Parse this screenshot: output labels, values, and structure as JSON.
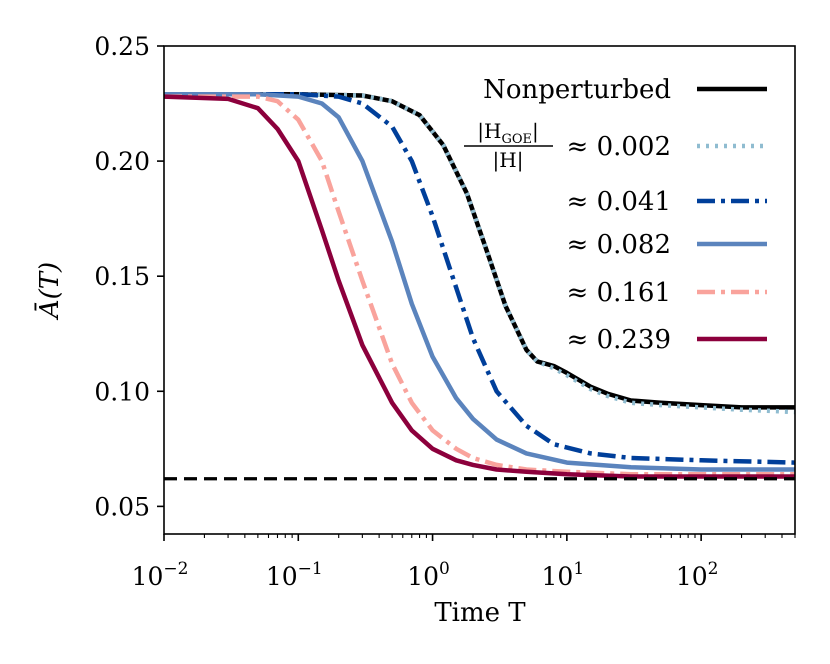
{
  "chart_data": {
    "type": "line",
    "xlabel": "Time T",
    "ylabel": "Ā(T)",
    "xscale": "log",
    "xlim": [
      0.01,
      500
    ],
    "ylim": [
      0.038,
      0.25
    ],
    "yticks": [
      0.05,
      0.1,
      0.15,
      0.2,
      0.25
    ],
    "ytick_labels": [
      "0.05",
      "0.10",
      "0.15",
      "0.20",
      "0.25"
    ],
    "xticks": [
      0.01,
      0.1,
      1,
      10,
      100
    ],
    "xtick_labels": [
      {
        "base": "10",
        "exp": "−2"
      },
      {
        "base": "10",
        "exp": "−1"
      },
      {
        "base": "10",
        "exp": "0"
      },
      {
        "base": "10",
        "exp": "1"
      },
      {
        "base": "10",
        "exp": "2"
      }
    ],
    "legend_title": {
      "numerator": "|H",
      "numerator_sub": "GOE",
      "denominator": "|H|"
    },
    "legend_position": "top-right",
    "reference_line": {
      "y": 0.062,
      "style": "dashed",
      "color": "#000000"
    },
    "series": [
      {
        "name": "Nonperturbed",
        "color": "#000000",
        "style": "solid",
        "x": [
          0.01,
          0.1,
          0.3,
          0.5,
          0.8,
          1.2,
          1.8,
          2.5,
          3.5,
          5,
          6,
          8,
          10,
          15,
          20,
          30,
          50,
          100,
          200,
          500
        ],
        "y": [
          0.229,
          0.229,
          0.2285,
          0.226,
          0.22,
          0.207,
          0.186,
          0.162,
          0.137,
          0.118,
          0.113,
          0.111,
          0.108,
          0.102,
          0.099,
          0.096,
          0.095,
          0.094,
          0.093,
          0.093
        ]
      },
      {
        "name": "≈ 0.002",
        "color": "#8fbcd0",
        "style": "dotted",
        "x": [
          0.01,
          0.1,
          0.3,
          0.5,
          0.8,
          1.2,
          1.8,
          2.5,
          3.5,
          5,
          6,
          8,
          10,
          15,
          20,
          30,
          50,
          100,
          200,
          500
        ],
        "y": [
          0.229,
          0.229,
          0.2285,
          0.226,
          0.22,
          0.207,
          0.186,
          0.162,
          0.137,
          0.118,
          0.113,
          0.11,
          0.107,
          0.101,
          0.098,
          0.095,
          0.094,
          0.093,
          0.092,
          0.091
        ]
      },
      {
        "name": "≈ 0.041",
        "color": "#003f9a",
        "style": "dashdot",
        "x": [
          0.01,
          0.1,
          0.2,
          0.3,
          0.5,
          0.7,
          1,
          1.5,
          2,
          3,
          5,
          8,
          15,
          30,
          100,
          500
        ],
        "y": [
          0.229,
          0.229,
          0.228,
          0.225,
          0.215,
          0.2,
          0.176,
          0.145,
          0.123,
          0.1,
          0.085,
          0.077,
          0.073,
          0.071,
          0.07,
          0.069
        ]
      },
      {
        "name": "≈ 0.082",
        "color": "#5b84bd",
        "style": "solid",
        "x": [
          0.01,
          0.05,
          0.1,
          0.15,
          0.2,
          0.3,
          0.5,
          0.7,
          1,
          1.5,
          2,
          3,
          5,
          10,
          30,
          100,
          500
        ],
        "y": [
          0.229,
          0.229,
          0.228,
          0.225,
          0.219,
          0.2,
          0.165,
          0.138,
          0.115,
          0.097,
          0.088,
          0.079,
          0.073,
          0.069,
          0.067,
          0.066,
          0.066
        ]
      },
      {
        "name": "≈ 0.161",
        "color": "#f9a39c",
        "style": "dashdot",
        "x": [
          0.01,
          0.05,
          0.07,
          0.1,
          0.15,
          0.2,
          0.3,
          0.5,
          0.7,
          1,
          1.5,
          2,
          3,
          5,
          10,
          30,
          100,
          500
        ],
        "y": [
          0.228,
          0.228,
          0.226,
          0.218,
          0.2,
          0.178,
          0.148,
          0.112,
          0.095,
          0.083,
          0.075,
          0.071,
          0.068,
          0.066,
          0.065,
          0.064,
          0.064,
          0.064
        ]
      },
      {
        "name": "≈ 0.239",
        "color": "#8c003c",
        "style": "solid",
        "x": [
          0.01,
          0.03,
          0.05,
          0.07,
          0.1,
          0.15,
          0.2,
          0.3,
          0.5,
          0.7,
          1,
          1.5,
          2,
          3,
          5,
          10,
          30,
          100,
          500
        ],
        "y": [
          0.228,
          0.227,
          0.223,
          0.214,
          0.2,
          0.17,
          0.148,
          0.12,
          0.095,
          0.083,
          0.075,
          0.07,
          0.068,
          0.066,
          0.065,
          0.064,
          0.063,
          0.063,
          0.063
        ]
      }
    ]
  }
}
